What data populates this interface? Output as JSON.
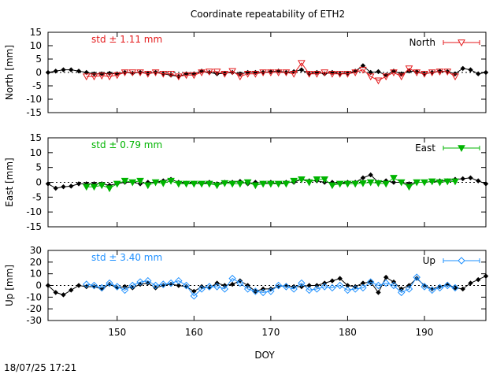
{
  "footer_timestamp": "18/07/25 17:21",
  "chart_data": {
    "type": "line",
    "title": "Coordinate repeatability of ETH2",
    "xlabel": "DOY",
    "xlim": [
      141,
      198
    ],
    "x_ticks": [
      150,
      160,
      170,
      180,
      190
    ],
    "panels": [
      {
        "id": "north",
        "ylabel": "North [mm]",
        "ylim": [
          -15,
          15
        ],
        "y_ticks": [
          -15,
          -10,
          -5,
          0,
          5,
          10,
          15
        ],
        "std_label": "std ± 1.11 mm",
        "legend": "North",
        "color": "#e41a1c",
        "marker": "triangle-down-open",
        "series": [
          {
            "name": "North",
            "x": [
              146,
              147,
              148,
              149,
              150,
              151,
              152,
              153,
              154,
              155,
              156,
              157,
              158,
              159,
              160,
              161,
              162,
              163,
              164,
              165,
              166,
              167,
              168,
              169,
              170,
              171,
              172,
              173,
              174,
              175,
              176,
              177,
              178,
              179,
              180,
              181,
              182,
              183,
              184,
              185,
              186,
              187,
              188,
              189,
              190,
              191,
              192,
              193,
              194
            ],
            "values": [
              -1.5,
              -1.5,
              -1.2,
              -1.5,
              -1.0,
              0.0,
              0.0,
              0.0,
              -0.5,
              0.0,
              -0.5,
              -0.5,
              -1.5,
              -1.0,
              -1.0,
              0.0,
              0.3,
              0.3,
              -0.5,
              0.5,
              -1.5,
              -0.5,
              -0.5,
              0.0,
              0.0,
              0.0,
              0.0,
              -0.5,
              3.5,
              -0.5,
              -0.5,
              0.0,
              -0.5,
              -0.5,
              -0.5,
              0.0,
              1.0,
              -1.5,
              -3.0,
              -1.5,
              0.0,
              -1.5,
              1.5,
              0.0,
              -0.5,
              0.0,
              0.3,
              0.3,
              -1.5
            ]
          },
          {
            "name": "",
            "x": [
              141,
              142,
              143,
              144,
              145,
              146,
              147,
              148,
              149,
              150,
              151,
              152,
              153,
              154,
              155,
              156,
              157,
              158,
              159,
              160,
              161,
              162,
              163,
              164,
              165,
              166,
              167,
              168,
              169,
              170,
              171,
              172,
              173,
              174,
              175,
              176,
              177,
              178,
              179,
              180,
              181,
              182,
              183,
              184,
              185,
              186,
              187,
              188,
              189,
              190,
              191,
              192,
              193,
              194,
              195,
              196,
              197,
              198
            ],
            "values": [
              0.0,
              0.5,
              1.0,
              1.0,
              0.5,
              0.0,
              -0.5,
              -0.5,
              -0.3,
              -0.5,
              0.0,
              -0.3,
              0.0,
              -0.3,
              0.0,
              -0.5,
              -1.0,
              -1.5,
              -0.5,
              -0.5,
              0.5,
              0.0,
              -0.5,
              -0.3,
              0.0,
              -0.5,
              0.0,
              0.0,
              0.0,
              0.3,
              0.5,
              0.0,
              0.3,
              1.0,
              -0.5,
              0.0,
              -0.5,
              0.0,
              -0.5,
              -0.3,
              0.5,
              2.5,
              0.0,
              0.3,
              -1.0,
              0.5,
              -0.5,
              0.5,
              0.3,
              -0.5,
              0.0,
              0.5,
              0.3,
              -0.5,
              1.5,
              1.0,
              -0.5,
              0.0
            ]
          }
        ]
      },
      {
        "id": "east",
        "ylabel": "East [mm]",
        "ylim": [
          -15,
          15
        ],
        "y_ticks": [
          -15,
          -10,
          -5,
          0,
          5,
          10,
          15
        ],
        "std_label": "std ± 0.79 mm",
        "legend": "East",
        "color": "#00b400",
        "marker": "triangle-down-filled",
        "series": [
          {
            "name": "East",
            "x": [
              146,
              147,
              148,
              149,
              150,
              151,
              152,
              153,
              154,
              155,
              156,
              157,
              158,
              159,
              160,
              161,
              162,
              163,
              164,
              165,
              166,
              167,
              168,
              169,
              170,
              171,
              172,
              173,
              174,
              175,
              176,
              177,
              178,
              179,
              180,
              181,
              182,
              183,
              184,
              185,
              186,
              187,
              188,
              189,
              190,
              191,
              192,
              193,
              194
            ],
            "values": [
              -1.5,
              -1.5,
              -1.0,
              -2.0,
              -0.5,
              0.5,
              0.0,
              0.5,
              -1.0,
              0.0,
              -0.3,
              0.5,
              -0.5,
              -0.5,
              -0.5,
              -0.5,
              -0.5,
              -1.0,
              -0.3,
              -0.5,
              -0.5,
              0.0,
              -1.0,
              -0.5,
              -0.5,
              -0.5,
              -0.5,
              0.5,
              1.0,
              0.0,
              1.0,
              1.0,
              -1.0,
              -0.5,
              -0.5,
              -0.5,
              -0.3,
              0.0,
              -0.3,
              -0.5,
              1.5,
              0.0,
              -1.5,
              0.0,
              0.0,
              0.3,
              0.0,
              0.3,
              0.3
            ]
          },
          {
            "name": "",
            "x": [
              141,
              142,
              143,
              144,
              145,
              146,
              147,
              148,
              149,
              150,
              151,
              152,
              153,
              154,
              155,
              156,
              157,
              158,
              159,
              160,
              161,
              162,
              163,
              164,
              165,
              166,
              167,
              168,
              169,
              170,
              171,
              172,
              173,
              174,
              175,
              176,
              177,
              178,
              179,
              180,
              181,
              182,
              183,
              184,
              185,
              186,
              187,
              188,
              189,
              190,
              191,
              192,
              193,
              194,
              195,
              196,
              197,
              198
            ],
            "values": [
              -0.5,
              -2.0,
              -1.5,
              -1.3,
              -0.5,
              -0.5,
              -0.5,
              -0.5,
              -1.0,
              -0.5,
              0.0,
              0.0,
              -0.5,
              0.0,
              0.0,
              0.5,
              1.0,
              0.0,
              -0.3,
              -0.3,
              -0.5,
              0.0,
              -0.5,
              0.0,
              0.0,
              0.3,
              -0.5,
              0.0,
              -0.3,
              0.0,
              -0.5,
              0.0,
              0.0,
              1.0,
              0.5,
              0.5,
              0.0,
              0.0,
              -0.5,
              0.0,
              0.0,
              1.5,
              2.5,
              0.0,
              0.5,
              0.0,
              0.0,
              -0.5,
              0.0,
              0.0,
              0.3,
              0.5,
              0.5,
              1.0,
              1.2,
              1.5,
              0.5,
              -0.5
            ]
          }
        ]
      },
      {
        "id": "up",
        "ylabel": "Up [mm]",
        "ylim": [
          -30,
          30
        ],
        "y_ticks": [
          -30,
          -20,
          -10,
          0,
          10,
          20,
          30
        ],
        "std_label": "std ± 3.40 mm",
        "legend": "Up",
        "color": "#1e90ff",
        "marker": "diamond-open",
        "series": [
          {
            "name": "Up",
            "x": [
              146,
              147,
              148,
              149,
              150,
              151,
              152,
              153,
              154,
              155,
              156,
              157,
              158,
              159,
              160,
              161,
              162,
              163,
              164,
              165,
              166,
              167,
              168,
              169,
              170,
              171,
              172,
              173,
              174,
              175,
              176,
              177,
              178,
              179,
              180,
              181,
              182,
              183,
              184,
              185,
              186,
              187,
              188,
              189,
              190,
              191,
              192,
              193,
              194
            ],
            "values": [
              1.0,
              0.0,
              -2.0,
              2.0,
              -1.0,
              -4.0,
              0.0,
              3.0,
              4.0,
              0.0,
              1.0,
              2.0,
              4.0,
              0.0,
              -9.0,
              -3.0,
              -1.0,
              -1.0,
              -3.0,
              6.0,
              2.0,
              -3.0,
              -5.0,
              -6.0,
              -5.0,
              0.0,
              -1.0,
              -3.0,
              2.0,
              -4.0,
              -3.0,
              -1.0,
              -2.0,
              0.0,
              -4.0,
              -3.0,
              -2.0,
              3.0,
              0.0,
              2.0,
              0.0,
              -6.0,
              -3.0,
              7.0,
              -1.0,
              -4.0,
              -2.0,
              0.0,
              -2.0
            ]
          },
          {
            "name": "",
            "x": [
              141,
              142,
              143,
              144,
              145,
              146,
              147,
              148,
              149,
              150,
              151,
              152,
              153,
              154,
              155,
              156,
              157,
              158,
              159,
              160,
              161,
              162,
              163,
              164,
              165,
              166,
              167,
              168,
              169,
              170,
              171,
              172,
              173,
              174,
              175,
              176,
              177,
              178,
              179,
              180,
              181,
              182,
              183,
              184,
              185,
              186,
              187,
              188,
              189,
              190,
              191,
              192,
              193,
              194,
              195,
              196,
              197,
              198
            ],
            "values": [
              0.0,
              -6.0,
              -8.0,
              -4.0,
              0.0,
              -1.0,
              -1.0,
              -3.0,
              1.0,
              -2.0,
              -1.0,
              -2.0,
              1.0,
              2.0,
              -2.0,
              0.0,
              1.0,
              0.0,
              -1.0,
              -5.0,
              -1.0,
              -2.0,
              2.0,
              0.0,
              1.0,
              4.0,
              0.0,
              -5.0,
              -3.0,
              -3.0,
              -1.0,
              0.0,
              -1.0,
              -1.0,
              0.0,
              0.0,
              2.0,
              4.0,
              6.0,
              0.0,
              -1.0,
              2.0,
              3.0,
              -6.0,
              7.0,
              3.0,
              -3.0,
              0.0,
              6.0,
              0.0,
              -3.0,
              -1.0,
              1.0,
              -2.0,
              -3.0,
              2.0,
              5.0,
              8.0
            ]
          }
        ]
      }
    ]
  }
}
